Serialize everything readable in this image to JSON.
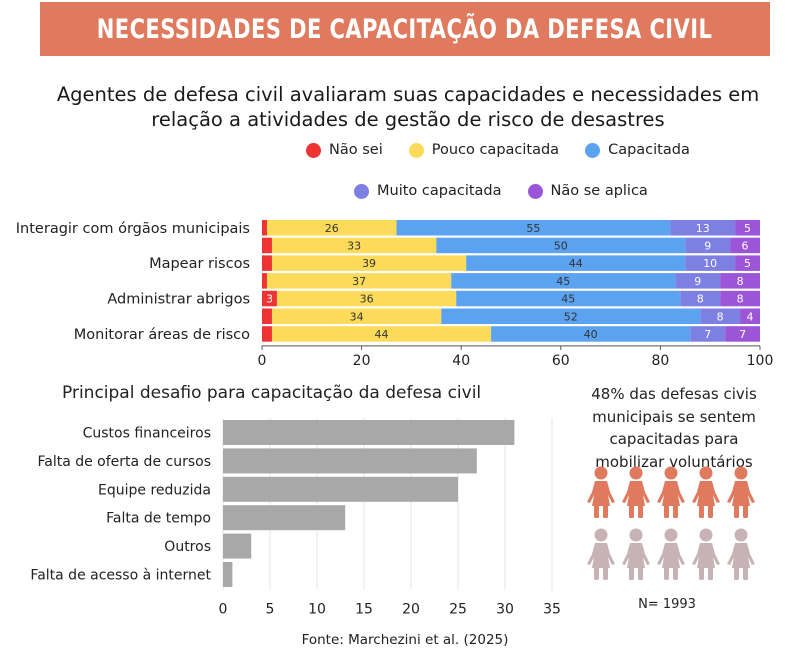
{
  "header": {
    "title": "NECESSIDADES DE CAPACITAÇÃO DA DEFESA CIVIL"
  },
  "subtitle": "Agentes de defesa civil avaliaram suas capacidades e necessidades em relação a atividades de gestão de risco de desastres",
  "legend": [
    {
      "label": "Não sei",
      "color": "#ee3333"
    },
    {
      "label": "Pouco capacitada",
      "color": "#fddb5a"
    },
    {
      "label": "Capacitada",
      "color": "#5ba3f0"
    },
    {
      "label": "Muito capacitada",
      "color": "#7d7fe2"
    },
    {
      "label": "Não se aplica",
      "color": "#9b55d6"
    }
  ],
  "stat_text": "48% das defesas civis municipais se sentem capacitadas para mobilizar voluntários",
  "people": {
    "total": 10,
    "highlighted": 5,
    "highlight_color": "#e07a5f",
    "muted_color": "#c7b3b6"
  },
  "n_label": "N= 1993",
  "source": "Fonte: Marchezini et al. (2025)",
  "chart_data": [
    {
      "type": "bar",
      "orientation": "horizontal",
      "stacked": true,
      "title": "",
      "categories": [
        "Interagir com órgãos municipais",
        "",
        "Mapear riscos",
        "",
        "Administrar abrigos",
        "",
        "Monitorar áreas de risco"
      ],
      "series": [
        {
          "name": "Não sei",
          "color": "#ee3333",
          "values": [
            1,
            2,
            2,
            1,
            3,
            2,
            2
          ],
          "labels": [
            "",
            "",
            "",
            "",
            "3",
            "",
            ""
          ]
        },
        {
          "name": "Pouco capacitada",
          "color": "#fddb5a",
          "values": [
            26,
            33,
            39,
            37,
            36,
            34,
            44
          ]
        },
        {
          "name": "Capacitada",
          "color": "#5ba3f0",
          "values": [
            55,
            50,
            44,
            45,
            45,
            52,
            40
          ]
        },
        {
          "name": "Muito capacitada",
          "color": "#7d7fe2",
          "values": [
            13,
            9,
            10,
            9,
            8,
            8,
            7
          ]
        },
        {
          "name": "Não se aplica",
          "color": "#9b55d6",
          "values": [
            5,
            6,
            5,
            8,
            8,
            4,
            7
          ]
        }
      ],
      "xlim": [
        0,
        100
      ],
      "xticks": [
        0,
        20,
        40,
        60,
        80,
        100
      ]
    },
    {
      "type": "bar",
      "orientation": "horizontal",
      "title": "Principal desafio para capacitação da defesa civil",
      "categories": [
        "Custos financeiros",
        "Falta de oferta de cursos",
        "Equipe reduzida",
        "Falta de tempo",
        "Outros",
        "Falta de acesso à internet"
      ],
      "values": [
        31,
        27,
        25,
        13,
        3,
        1
      ],
      "color": "#a8a8a8",
      "xlim": [
        0,
        35
      ],
      "xticks": [
        0,
        5,
        10,
        15,
        20,
        25,
        30,
        35
      ],
      "grid": true
    }
  ]
}
